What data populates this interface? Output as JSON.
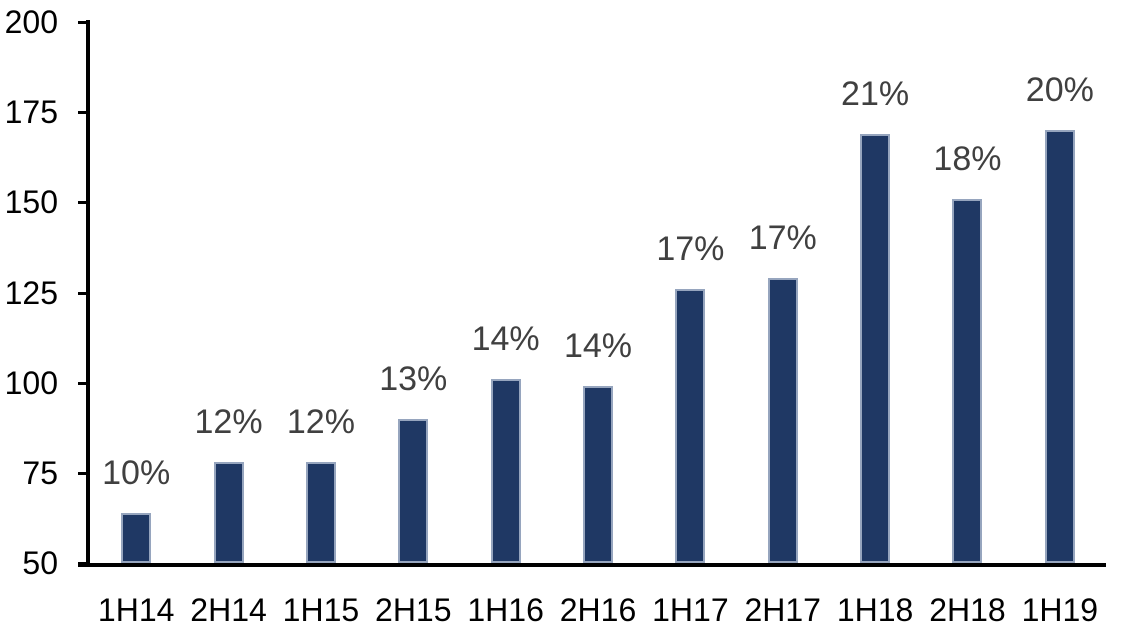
{
  "chart_data": {
    "type": "bar",
    "title": "",
    "xlabel": "",
    "ylabel": "",
    "categories": [
      "1H14",
      "2H14",
      "1H15",
      "2H15",
      "1H16",
      "2H16",
      "1H17",
      "2H17",
      "1H18",
      "2H18",
      "1H19"
    ],
    "values": [
      64,
      78,
      78,
      90,
      101,
      99,
      126,
      129,
      169,
      151,
      170
    ],
    "bar_labels": [
      "10%",
      "12%",
      "12%",
      "13%",
      "14%",
      "14%",
      "17%",
      "17%",
      "21%",
      "18%",
      "20%"
    ],
    "y_ticks": [
      50,
      75,
      100,
      125,
      150,
      175,
      200
    ],
    "ylim": [
      50,
      200
    ],
    "grid": false,
    "legend": "none",
    "colors": {
      "bar_fill": "#1F3864",
      "bar_border": "#96A5BE",
      "data_label": "#404040",
      "axis_text": "#000000",
      "axis_line": "#000000",
      "background": "#FFFFFF"
    }
  }
}
